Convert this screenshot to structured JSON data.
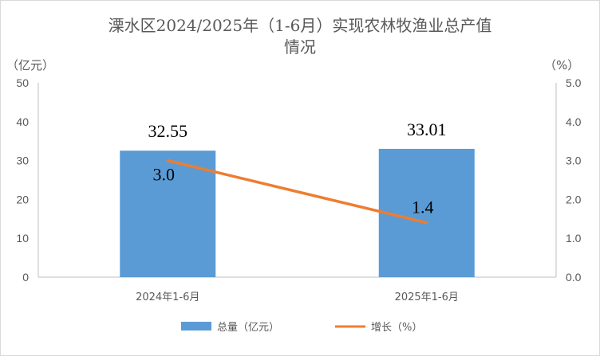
{
  "chart_data": {
    "type": "bar",
    "title_line1": "溧水区2024/2025年（1-6月）实现农林牧渔业总产值",
    "title_line2": "情况",
    "left_unit": "（亿元）",
    "right_unit": "（%）",
    "categories": [
      "2024年1-6月",
      "2025年1-6月"
    ],
    "series": [
      {
        "name": "总量（亿元）",
        "type": "bar",
        "axis": "left",
        "values": [
          32.55,
          33.01
        ],
        "labels": [
          "32.55",
          "33.01"
        ],
        "color": "#5b9bd5"
      },
      {
        "name": "增长（%）",
        "type": "line",
        "axis": "right",
        "values": [
          3.0,
          1.4
        ],
        "labels": [
          "3.0",
          "1.4"
        ],
        "color": "#ed7d31"
      }
    ],
    "y_left": {
      "min": 0,
      "max": 50,
      "ticks": [
        "0",
        "10",
        "20",
        "30",
        "40",
        "50"
      ]
    },
    "y_right": {
      "min": 0,
      "max": 5,
      "ticks": [
        "0.0",
        "1.0",
        "2.0",
        "3.0",
        "4.0",
        "5.0"
      ]
    },
    "grid": false,
    "legend_position": "bottom"
  }
}
